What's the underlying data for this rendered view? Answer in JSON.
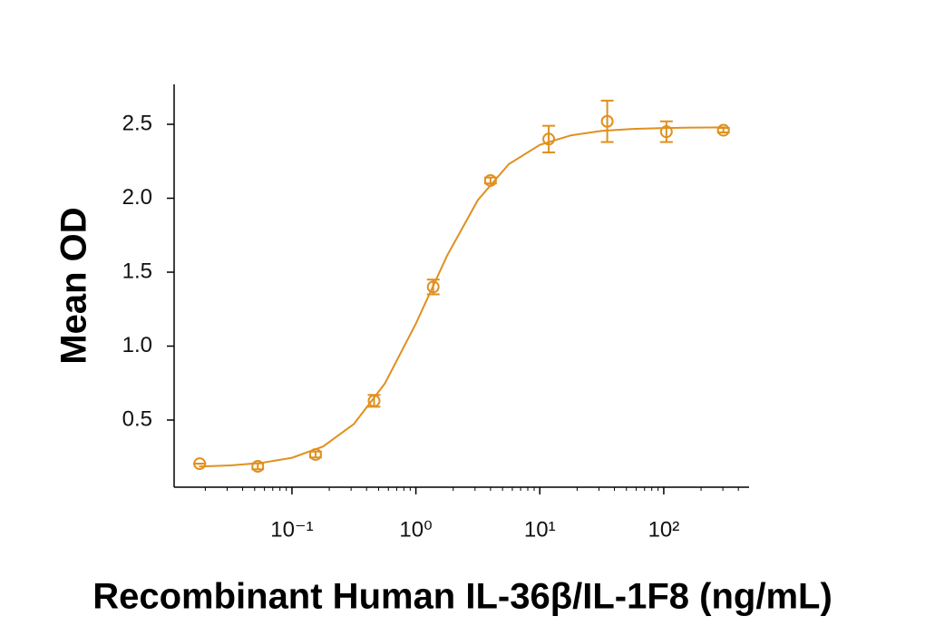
{
  "chart_data": {
    "type": "scatter",
    "x_label": "Recombinant Human IL-36β/IL-1F8 (ng/mL)",
    "y_label": "Mean OD",
    "log_x": true,
    "color": "#e0901f",
    "x": [
      0.018,
      0.053,
      0.155,
      0.46,
      1.38,
      4.0,
      11.8,
      35,
      105,
      303
    ],
    "values": [
      0.205,
      0.187,
      0.267,
      0.63,
      1.4,
      2.12,
      2.4,
      2.52,
      2.45,
      2.46
    ],
    "errors": [
      0,
      0.02,
      0.02,
      0.04,
      0.05,
      0.02,
      0.09,
      0.14,
      0.07,
      0.015
    ],
    "fit": {
      "x": [
        0.0178,
        0.0316,
        0.0562,
        0.1,
        0.178,
        0.316,
        0.562,
        1,
        1.78,
        3.16,
        5.62,
        10,
        17.8,
        31.6,
        56.2,
        100,
        178,
        316
      ],
      "values": [
        0.186,
        0.193,
        0.21,
        0.245,
        0.321,
        0.473,
        0.747,
        1.152,
        1.609,
        1.987,
        2.231,
        2.361,
        2.425,
        2.455,
        2.469,
        2.475,
        2.478,
        2.479
      ]
    },
    "xlim": [
      0.0112,
      488
    ],
    "ylim": [
      0.046,
      2.77
    ],
    "xticks": [
      {
        "value": 0.1,
        "label": "10⁻¹"
      },
      {
        "value": 1,
        "label": "10⁰"
      },
      {
        "value": 10,
        "label": "10¹"
      },
      {
        "value": 100,
        "label": "10²"
      }
    ],
    "xminorticks": [
      0.02,
      0.03,
      0.04,
      0.05,
      0.06,
      0.07,
      0.08,
      0.09,
      0.2,
      0.3,
      0.4,
      0.5,
      0.6,
      0.7,
      0.8,
      0.9,
      2,
      3,
      4,
      5,
      6,
      7,
      8,
      9,
      20,
      30,
      40,
      50,
      60,
      70,
      80,
      90,
      200,
      300,
      400
    ],
    "yticks": [
      0.5,
      {
        "value": 1,
        "label": "1.0"
      },
      1.5,
      {
        "value": 2,
        "label": "2.0"
      },
      2.5
    ]
  }
}
